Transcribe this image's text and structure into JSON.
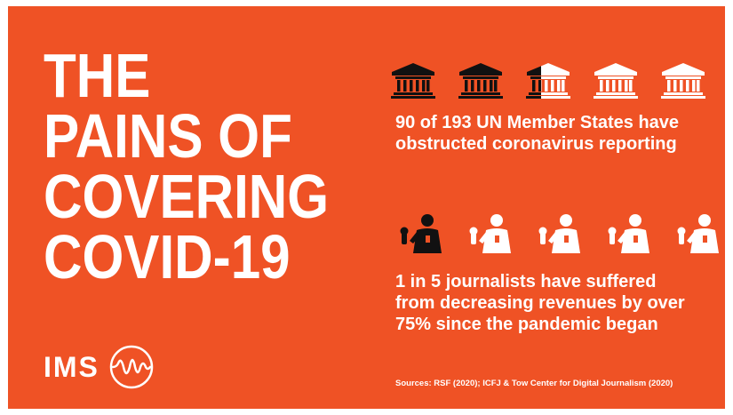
{
  "headline": {
    "line1": "THE",
    "line2": "PAINS OF",
    "line3": "COVERING",
    "line4": "COVID-19"
  },
  "states_stat": {
    "text_line1": "90 of 193 UN Member States have",
    "text_line2": "obstructed coronavirus reporting",
    "icon": "government-building-icon",
    "icons_total": 5,
    "fraction_filled": 0.466
  },
  "journalists_stat": {
    "text_line1": "1 in 5 journalists have suffered",
    "text_line2": "from decreasing revenues by over",
    "text_line3": "75% since the pandemic began",
    "icon": "journalist-with-microphone-icon",
    "icons_total": 5,
    "icons_filled": 1
  },
  "logo": {
    "text": "IMS",
    "mark": "sound-wave-circle-icon"
  },
  "sources": "Sources: RSF (2020); ICFJ & Tow Center for Digital Journalism (2020)",
  "colors": {
    "background": "#ef5225",
    "text": "#ffffff",
    "icon_filled": "#111111",
    "icon_outline": "#ffffff"
  }
}
